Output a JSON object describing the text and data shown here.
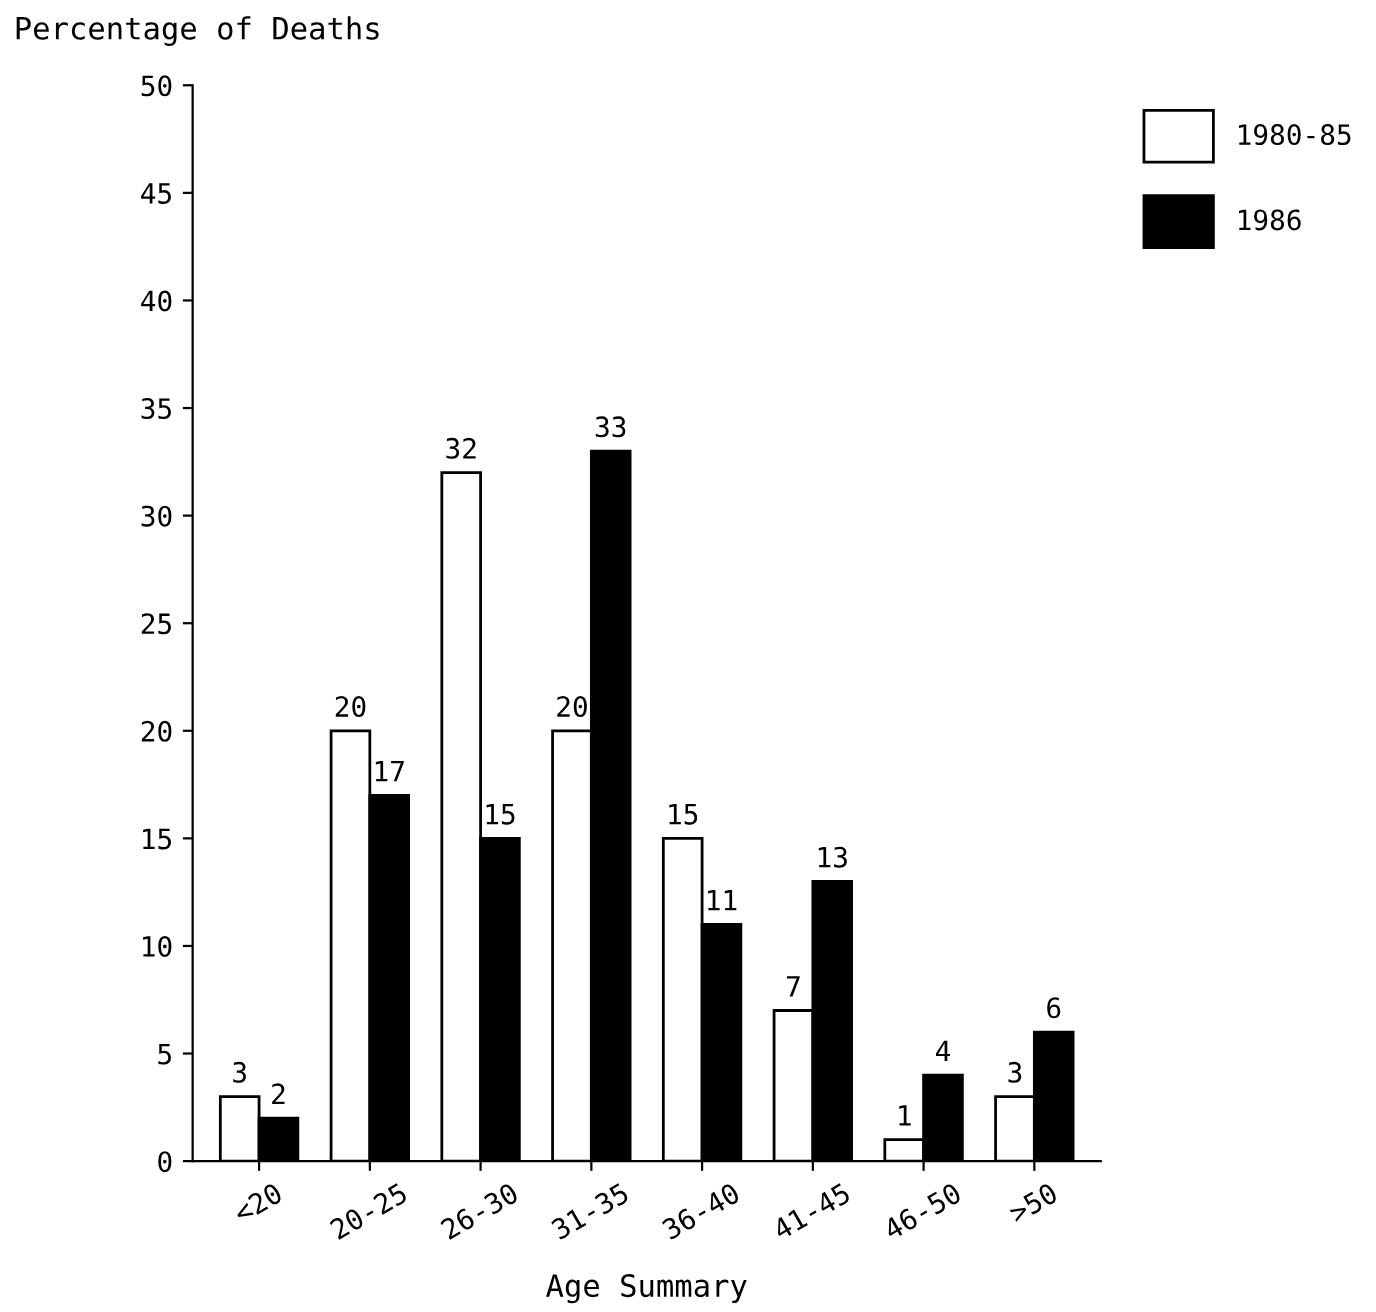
{
  "chart_data": {
    "type": "bar",
    "ylabel": "Percentage of Deaths",
    "xlabel": "Age Summary",
    "categories": [
      "<20",
      "20-25",
      "26-30",
      "31-35",
      "36-40",
      "41-45",
      "46-50",
      ">50"
    ],
    "series": [
      {
        "name": "1980-85",
        "color": "#ffffff",
        "values": [
          3,
          20,
          32,
          20,
          15,
          7,
          1,
          3
        ]
      },
      {
        "name": "1986",
        "color": "#000000",
        "values": [
          2,
          17,
          15,
          33,
          11,
          13,
          4,
          6
        ]
      }
    ],
    "ylim": [
      0,
      50
    ],
    "yticks": [
      0,
      5,
      10,
      15,
      20,
      25,
      30,
      35,
      40,
      45,
      50
    ],
    "data_labels": true,
    "grid": false,
    "legend": "top right"
  }
}
